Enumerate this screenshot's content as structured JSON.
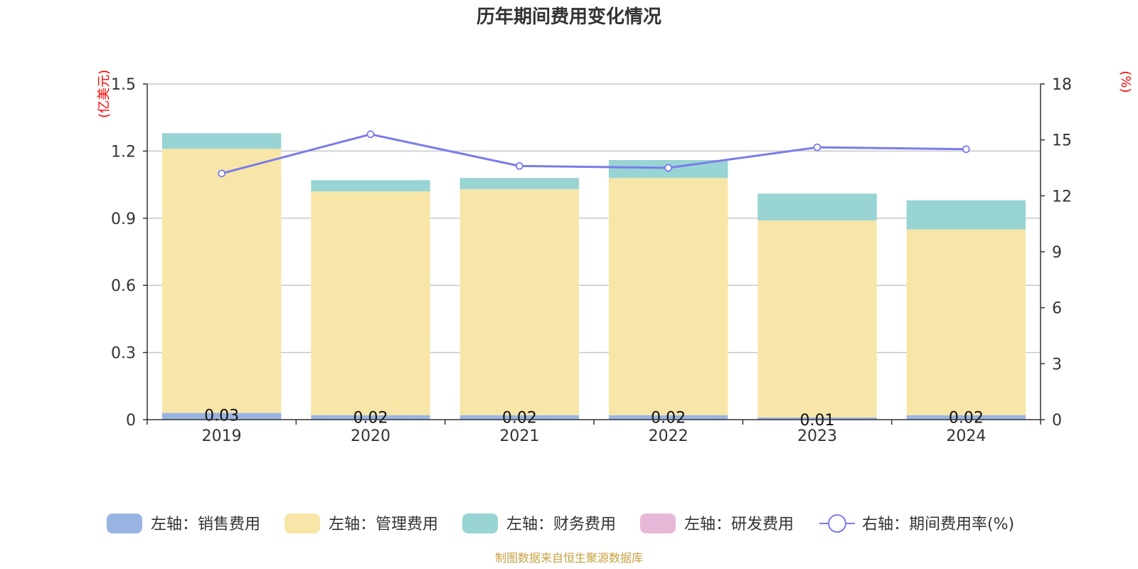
{
  "chart_data": {
    "type": "bar",
    "stacked": true,
    "title": "历年期间费用变化情况",
    "categories": [
      "2019",
      "2020",
      "2021",
      "2022",
      "2023",
      "2024"
    ],
    "left_axis": {
      "unit": "(亿美元)",
      "ylim": [
        0,
        1.5
      ],
      "ticks": [
        "0",
        "0.3",
        "0.6",
        "0.9",
        "1.2",
        "1.5"
      ]
    },
    "right_axis": {
      "unit": "(%)",
      "ylim": [
        0,
        18
      ],
      "ticks": [
        "0",
        "3",
        "6",
        "9",
        "12",
        "15",
        "18"
      ]
    },
    "series": [
      {
        "name": "左轴：销售费用",
        "color": "#9ab4e2",
        "values": [
          0.03,
          0.02,
          0.02,
          0.02,
          0.01,
          0.02
        ],
        "labels": [
          "0.03",
          "0.02",
          "0.02",
          "0.02",
          "0.01",
          "0.02"
        ]
      },
      {
        "name": "左轴：管理费用",
        "color": "#f7e6a8",
        "values": [
          1.18,
          1.0,
          1.01,
          1.06,
          0.88,
          0.83
        ]
      },
      {
        "name": "左轴：财务费用",
        "color": "#98d4d4",
        "values": [
          0.07,
          0.05,
          0.05,
          0.08,
          0.12,
          0.13
        ]
      },
      {
        "name": "左轴：研发费用",
        "color": "#e8b8d8",
        "values": [
          0,
          0,
          0,
          0,
          0,
          0
        ]
      }
    ],
    "line": {
      "name": "右轴：期间费用率(%)",
      "color": "#7b7bea",
      "axis": "right",
      "values": [
        13.2,
        15.3,
        13.6,
        13.5,
        14.6,
        14.5
      ]
    },
    "grid": true,
    "legend_position": "bottom"
  },
  "footer": {
    "source": "制图数据来自恒生聚源数据库"
  }
}
